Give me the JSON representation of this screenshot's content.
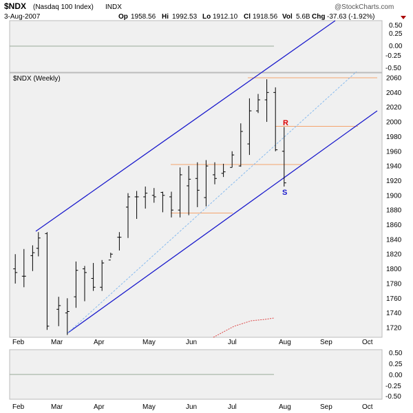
{
  "header": {
    "symbol": "$NDX",
    "name": "(Nasdaq 100 Index)",
    "exchange": "INDX",
    "date": "3-Aug-2007",
    "brand": "@StockCharts.com",
    "quote": {
      "open_label": "Op",
      "open": "1958.56",
      "high_label": "Hi",
      "high": "1992.53",
      "low_label": "Lo",
      "low": "1912.10",
      "close_label": "Cl",
      "close": "1918.56",
      "vol_label": "Vol",
      "vol": "5.6B",
      "chg_label": "Chg",
      "chg": "-37.63 (-1.92%)"
    }
  },
  "colors": {
    "panel_bg": "#f0f0f0",
    "channel": "#1a1acc",
    "midline": "#88bbee",
    "level": "#f4a36b",
    "resistance": "#dd0000",
    "support": "#1a1acc",
    "down_arrow": "#aa0000"
  },
  "chart_data": {
    "type": "ohlc",
    "title": "$NDX (Weekly)",
    "time_axis": [
      "Feb",
      "Mar",
      "Apr",
      "May",
      "Jun",
      "Jul",
      "Aug",
      "Sep",
      "Oct"
    ],
    "ylim": [
      1700,
      2070
    ],
    "yticks": [
      1720,
      1740,
      1760,
      1780,
      1800,
      1820,
      1840,
      1860,
      1880,
      1900,
      1920,
      1940,
      1960,
      1980,
      2000,
      2020,
      2040,
      2060
    ],
    "x_unit": "trading day (index)",
    "bars": [
      {
        "x": 1,
        "o": 1800,
        "h": 1820,
        "l": 1780,
        "c": 1795
      },
      {
        "x": 4,
        "o": 1790,
        "h": 1827,
        "l": 1775,
        "c": 1790
      },
      {
        "x": 7,
        "o": 1818,
        "h": 1832,
        "l": 1797,
        "c": 1822
      },
      {
        "x": 9,
        "o": 1828,
        "h": 1850,
        "l": 1817,
        "c": 1842
      },
      {
        "x": 12,
        "o": 1848,
        "h": 1850,
        "l": 1717,
        "c": 1722
      },
      {
        "x": 16,
        "o": 1745,
        "h": 1762,
        "l": 1722,
        "c": 1750
      },
      {
        "x": 19,
        "o": 1740,
        "h": 1760,
        "l": 1710,
        "c": 1742
      },
      {
        "x": 22,
        "o": 1762,
        "h": 1810,
        "l": 1747,
        "c": 1798
      },
      {
        "x": 25,
        "o": 1800,
        "h": 1804,
        "l": 1756,
        "c": 1795
      },
      {
        "x": 28,
        "o": 1787,
        "h": 1808,
        "l": 1770,
        "c": 1775
      },
      {
        "x": 31,
        "o": 1775,
        "h": 1812,
        "l": 1770,
        "c": 1808
      },
      {
        "x": 34,
        "o": 1812,
        "h": 1822,
        "l": 1815,
        "c": 1820
      },
      {
        "x": 37,
        "o": 1843,
        "h": 1850,
        "l": 1825,
        "c": 1843
      },
      {
        "x": 40,
        "o": 1884,
        "h": 1903,
        "l": 1842,
        "c": 1898
      },
      {
        "x": 43,
        "o": 1898,
        "h": 1906,
        "l": 1868,
        "c": 1898
      },
      {
        "x": 46,
        "o": 1898,
        "h": 1912,
        "l": 1882,
        "c": 1903
      },
      {
        "x": 49,
        "o": 1900,
        "h": 1910,
        "l": 1890,
        "c": 1898
      },
      {
        "x": 52,
        "o": 1904,
        "h": 1905,
        "l": 1877,
        "c": 1900
      },
      {
        "x": 55,
        "o": 1898,
        "h": 1905,
        "l": 1870,
        "c": 1880
      },
      {
        "x": 58,
        "o": 1880,
        "h": 1938,
        "l": 1870,
        "c": 1928
      },
      {
        "x": 61,
        "o": 1913,
        "h": 1940,
        "l": 1873,
        "c": 1922
      },
      {
        "x": 64,
        "o": 1923,
        "h": 1945,
        "l": 1884,
        "c": 1907
      },
      {
        "x": 67,
        "o": 1897,
        "h": 1948,
        "l": 1885,
        "c": 1940
      },
      {
        "x": 70,
        "o": 1928,
        "h": 1945,
        "l": 1915,
        "c": 1923
      },
      {
        "x": 73,
        "o": 1930,
        "h": 1943,
        "l": 1925,
        "c": 1932
      },
      {
        "x": 76,
        "o": 1938,
        "h": 1960,
        "l": 1938,
        "c": 1955
      },
      {
        "x": 79,
        "o": 1940,
        "h": 1998,
        "l": 1939,
        "c": 1987
      },
      {
        "x": 82,
        "o": 1970,
        "h": 2032,
        "l": 1955,
        "c": 2015
      },
      {
        "x": 85,
        "o": 2015,
        "h": 2038,
        "l": 2012,
        "c": 2030
      },
      {
        "x": 88,
        "o": 2030,
        "h": 2058,
        "l": 2000,
        "c": 2040
      },
      {
        "x": 91,
        "o": 2040,
        "h": 2047,
        "l": 1960,
        "c": 1962
      },
      {
        "x": 94,
        "o": 1960,
        "h": 1993,
        "l": 1912,
        "c": 1917
      }
    ],
    "levels": [
      {
        "label": "R",
        "value": 1994
      },
      {
        "label": "S",
        "value": 1900
      }
    ]
  }
}
